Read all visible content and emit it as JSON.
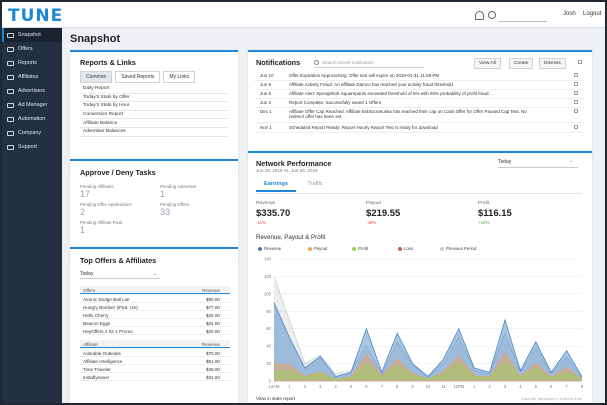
{
  "app": {
    "logo": "TUNE",
    "user": "Josh",
    "logout": "Logout"
  },
  "sidebar": {
    "items": [
      {
        "label": "Snapshot",
        "icon": "home-icon"
      },
      {
        "label": "Offers",
        "icon": "offers-icon"
      },
      {
        "label": "Reports",
        "icon": "chart-icon"
      },
      {
        "label": "Affiliates",
        "icon": "users-icon"
      },
      {
        "label": "Advertisers",
        "icon": "advertiser-icon"
      },
      {
        "label": "Ad Manager",
        "icon": "ad-icon"
      },
      {
        "label": "Automation",
        "icon": "gear-icon"
      },
      {
        "label": "Company",
        "icon": "building-icon"
      },
      {
        "label": "Support",
        "icon": "help-icon"
      }
    ]
  },
  "page": {
    "title": "Snapshot"
  },
  "reports": {
    "title": "Reports & Links",
    "tabs": [
      "Common",
      "Saved Reports",
      "My Links"
    ],
    "items": [
      "Daily Report",
      "Today's Stats by Offer",
      "Today's Stats by Hour",
      "Conversion Report",
      "Affiliate Balance",
      "Advertiser Balances"
    ]
  },
  "notifications": {
    "title": "Notifications",
    "search_placeholder": "Search recent notification",
    "buttons": [
      "View All",
      "Create",
      "Dismiss"
    ],
    "items": [
      {
        "date": "Jun 10",
        "text": "Offer Expiration Approaching: Offer test will expire on 2019-01-31 11:59 PM"
      },
      {
        "date": "Jun 9",
        "text": "Affiliate Activity Fraud: An affiliate Damco has reached your activity fraud threshold"
      },
      {
        "date": "Jun 8",
        "text": "Affiliate Alert: Spongebob Squarepants exceeded threshold of 5% with 50% probability of profit fraud."
      },
      {
        "date": "Jun 3",
        "text": "Report Complete: Successfully saved 1 Offers"
      },
      {
        "date": "Dec 1",
        "text": "Affiliate Offer Cap Reached: Affiliate Bobtocranuska has reached their cap on Cash Offer for Offer Paused Cap Test. No redirect offer has been set."
      },
      {
        "date": "Nov 1",
        "text": "Scheduled Report Ready: Report Hourly Report Test is ready for download"
      }
    ]
  },
  "approve": {
    "title": "Approve / Deny Tasks",
    "stats": [
      {
        "label": "Pending Affiliates",
        "value": "17"
      },
      {
        "label": "Pending Advertiser",
        "value": "1"
      },
      {
        "label": "Pending Offer Applications",
        "value": "2"
      },
      {
        "label": "Pending Offers",
        "value": "33"
      },
      {
        "label": "Pending Affiliate Pixel",
        "value": "1"
      }
    ]
  },
  "top_offers": {
    "title": "Top Offers & Affiliates",
    "period": "Today",
    "offers_header": {
      "name": "Offers",
      "value": "Revenue"
    },
    "offers": [
      {
        "name": "Atomic Dodge Ball Lite",
        "value": "$90.00"
      },
      {
        "name": "Hungry Bomber (iPad, US)",
        "value": "$77.00"
      },
      {
        "name": "Hello Cherry",
        "value": "$26.00"
      },
      {
        "name": "Beacon Eggs",
        "value": "$24.00"
      },
      {
        "name": "HeyOffers 2 for 1 Promo",
        "value": "$20.00"
      }
    ],
    "affiliates_header": {
      "name": "Affiliate",
      "value": "Revenue"
    },
    "affiliates": [
      {
        "name": "Adorable Outlooks",
        "value": "$70.00"
      },
      {
        "name": "Affiliate Intelligence",
        "value": "$51.00"
      },
      {
        "name": "Time Traveler",
        "value": "$49.00"
      },
      {
        "name": "Instaflyeaner",
        "value": "$31.50"
      }
    ]
  },
  "network": {
    "title": "Network Performance",
    "date": "Jun 25, 2019 vs. Jun 26, 2019",
    "period": "Today",
    "tabs": [
      "Earnings",
      "Traffic"
    ],
    "kpis": [
      {
        "label": "Revenue",
        "value": "$335.70",
        "pct": "-11%",
        "color": "#d9534f"
      },
      {
        "label": "Payout",
        "value": "$219.55",
        "pct": "-38%",
        "color": "#d9534f"
      },
      {
        "label": "Profit",
        "value": "$116.15",
        "pct": "+16%",
        "color": "#4caf50"
      }
    ],
    "chart_title": "Revenue, Payout & Profit",
    "footer_link": "View in stats report",
    "footer_note": "Data will displayed in Eastern time"
  },
  "chart_data": {
    "type": "area",
    "title": "Revenue, Payout & Profit",
    "x": [
      "12AM",
      "1",
      "2",
      "3",
      "4",
      "5",
      "6",
      "7",
      "8",
      "9",
      "10",
      "11",
      "12PM",
      "1",
      "2",
      "3",
      "4",
      "5",
      "6",
      "7",
      "8"
    ],
    "yticks": [
      0,
      20,
      40,
      60,
      80,
      100,
      120,
      140
    ],
    "ylim": [
      0,
      140
    ],
    "grid": true,
    "legend_position": "top",
    "series": [
      {
        "name": "Revenue",
        "color": "#3d7fc4",
        "values": [
          90,
          50,
          15,
          28,
          5,
          10,
          60,
          10,
          55,
          20,
          5,
          25,
          60,
          15,
          10,
          70,
          12,
          45,
          10,
          35,
          5
        ]
      },
      {
        "name": "Payout",
        "color": "#f0a04b",
        "values": [
          20,
          18,
          5,
          10,
          2,
          4,
          30,
          5,
          25,
          8,
          2,
          10,
          28,
          6,
          4,
          32,
          5,
          20,
          4,
          15,
          2
        ]
      },
      {
        "name": "Profit",
        "color": "#9bd05a",
        "values": [
          10,
          12,
          4,
          8,
          2,
          3,
          20,
          4,
          18,
          6,
          2,
          8,
          20,
          5,
          3,
          22,
          4,
          14,
          3,
          10,
          2
        ]
      },
      {
        "name": "Loss",
        "color": "#e0574f",
        "values": [
          0,
          0,
          0,
          0,
          0,
          0,
          0,
          0,
          0,
          0,
          0,
          0,
          0,
          0,
          0,
          0,
          0,
          0,
          0,
          0,
          0
        ]
      },
      {
        "name": "Previous Period",
        "color": "#c8ccd2",
        "values": [
          120,
          70,
          20,
          30,
          8,
          12,
          40,
          8,
          45,
          18,
          6,
          20,
          50,
          12,
          8,
          55,
          10,
          38,
          8,
          28,
          4
        ]
      }
    ]
  }
}
